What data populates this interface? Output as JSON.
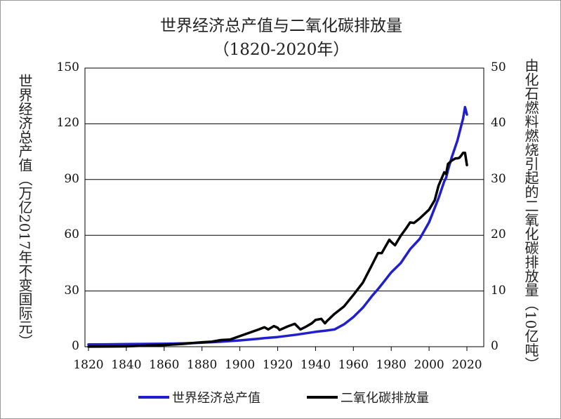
{
  "chart_data": {
    "type": "line",
    "title": "世界经济总产值与二氧化碳排放量",
    "subtitle": "（1820-2020年）",
    "xlabel": "",
    "ylabel_left": "世界经济总产值（万亿2017年不变国际元）",
    "ylabel_right": "由化石燃料燃烧引起的二氧化碳排放量（10亿吨）",
    "xlim": [
      1820,
      2020
    ],
    "ylim_left": [
      0,
      150
    ],
    "ylim_right": [
      0,
      50
    ],
    "x_ticks": [
      "1820",
      "1840",
      "1860",
      "1880",
      "1900",
      "1920",
      "1940",
      "1960",
      "1980",
      "2000",
      "2020"
    ],
    "y_ticks_left": [
      "0",
      "30",
      "60",
      "90",
      "120",
      "150"
    ],
    "y_ticks_right": [
      "0",
      "10",
      "20",
      "30",
      "40",
      "50"
    ],
    "grid": "horizontal",
    "legend_position": "bottom",
    "series": [
      {
        "name": "世界经济总产值",
        "axis": "left",
        "color": "#1f1fd0",
        "x": [
          1820,
          1830,
          1840,
          1850,
          1860,
          1870,
          1880,
          1890,
          1900,
          1910,
          1913,
          1920,
          1930,
          1940,
          1945,
          1950,
          1955,
          1960,
          1965,
          1970,
          1973,
          1975,
          1980,
          1985,
          1990,
          1995,
          2000,
          2005,
          2008,
          2009,
          2010,
          2012,
          2015,
          2018,
          2019,
          2020
        ],
        "values": [
          1.2,
          1.3,
          1.4,
          1.5,
          1.6,
          1.8,
          2.2,
          2.7,
          3.4,
          4.3,
          4.6,
          5.2,
          6.5,
          8.0,
          8.6,
          9.3,
          12.0,
          16.0,
          21.0,
          27.5,
          31.0,
          33.5,
          40.0,
          45.0,
          52.5,
          58.0,
          67.0,
          80.0,
          89.0,
          91.0,
          95.0,
          102.0,
          111.0,
          123.0,
          129.0,
          125.0
        ]
      },
      {
        "name": "二氧化碳排放量",
        "axis": "right",
        "color": "#000000",
        "x": [
          1820,
          1830,
          1840,
          1850,
          1860,
          1870,
          1880,
          1885,
          1890,
          1895,
          1900,
          1905,
          1910,
          1913,
          1915,
          1918,
          1920,
          1921,
          1925,
          1929,
          1932,
          1935,
          1938,
          1940,
          1943,
          1945,
          1946,
          1950,
          1955,
          1960,
          1965,
          1970,
          1973,
          1975,
          1979,
          1980,
          1982,
          1985,
          1988,
          1990,
          1992,
          1995,
          2000,
          2003,
          2005,
          2008,
          2009,
          2010,
          2012,
          2014,
          2015,
          2016,
          2017,
          2018,
          2019,
          2020
        ],
        "values": [
          0.01,
          0.03,
          0.06,
          0.2,
          0.3,
          0.5,
          0.8,
          0.9,
          1.2,
          1.3,
          1.9,
          2.5,
          3.1,
          3.5,
          3.1,
          3.7,
          3.4,
          3.0,
          3.6,
          4.1,
          3.1,
          3.6,
          4.2,
          4.8,
          5.0,
          4.2,
          4.6,
          5.9,
          7.2,
          9.3,
          11.5,
          14.8,
          16.8,
          16.8,
          19.2,
          18.8,
          18.2,
          19.9,
          21.3,
          22.3,
          22.2,
          23.0,
          24.6,
          26.3,
          28.9,
          31.3,
          31.0,
          32.8,
          33.4,
          33.8,
          33.8,
          33.9,
          34.3,
          34.8,
          34.8,
          32.6
        ]
      }
    ]
  }
}
